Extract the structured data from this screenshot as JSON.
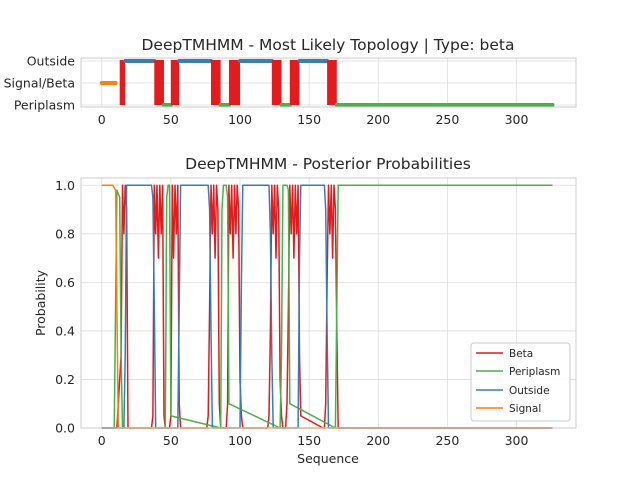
{
  "chart_data": [
    {
      "type": "line",
      "title": "DeepTMHMM - Most Likely Topology | Type: beta",
      "xlabel": "",
      "ylabel": "",
      "xlim": [
        -15,
        343
      ],
      "x_ticks": [
        0,
        50,
        100,
        150,
        200,
        250,
        300
      ],
      "y_categories": [
        "Periplasm",
        "Signal/Beta",
        "Outside"
      ],
      "grid": true,
      "segments": [
        {
          "label": "Signal",
          "color": "#ff7f0e",
          "level": "Signal/Beta",
          "x": [
            0,
            10
          ]
        },
        {
          "label": "Beta",
          "color": "#e41a1c",
          "x": [
            13,
            17
          ]
        },
        {
          "label": "Outside",
          "color": "#377eb8",
          "level": "Outside",
          "x": [
            17,
            38
          ]
        },
        {
          "label": "Beta",
          "color": "#e41a1c",
          "x": [
            38,
            45
          ]
        },
        {
          "label": "Periplasm",
          "color": "#4daf4a",
          "level": "Periplasm",
          "x": [
            45,
            50
          ]
        },
        {
          "label": "Beta",
          "color": "#e41a1c",
          "x": [
            50,
            56
          ]
        },
        {
          "label": "Outside",
          "color": "#377eb8",
          "level": "Outside",
          "x": [
            56,
            79
          ]
        },
        {
          "label": "Beta",
          "color": "#e41a1c",
          "x": [
            79,
            86
          ]
        },
        {
          "label": "Periplasm",
          "color": "#4daf4a",
          "level": "Periplasm",
          "x": [
            86,
            92
          ]
        },
        {
          "label": "Beta",
          "color": "#e41a1c",
          "x": [
            92,
            100
          ]
        },
        {
          "label": "Outside",
          "color": "#377eb8",
          "level": "Outside",
          "x": [
            100,
            123
          ]
        },
        {
          "label": "Beta",
          "color": "#e41a1c",
          "x": [
            123,
            130
          ]
        },
        {
          "label": "Periplasm",
          "color": "#4daf4a",
          "level": "Periplasm",
          "x": [
            130,
            136
          ]
        },
        {
          "label": "Beta",
          "color": "#e41a1c",
          "x": [
            136,
            143
          ]
        },
        {
          "label": "Outside",
          "color": "#377eb8",
          "level": "Outside",
          "x": [
            143,
            163
          ]
        },
        {
          "label": "Beta",
          "color": "#e41a1c",
          "x": [
            163,
            170
          ]
        },
        {
          "label": "Periplasm",
          "color": "#4daf4a",
          "level": "Periplasm",
          "x": [
            170,
            326
          ]
        }
      ]
    },
    {
      "type": "line",
      "title": "DeepTMHMM - Posterior Probabilities",
      "xlabel": "Sequence",
      "ylabel": "Probability",
      "xlim": [
        -15,
        343
      ],
      "ylim": [
        0,
        1.03
      ],
      "x_ticks": [
        0,
        50,
        100,
        150,
        200,
        250,
        300
      ],
      "y_ticks": [
        0.0,
        0.2,
        0.4,
        0.6,
        0.8,
        1.0
      ],
      "y_tick_labels": [
        "0.0",
        "0.2",
        "0.4",
        "0.6",
        "0.8",
        "1.0"
      ],
      "grid": true,
      "legend_position": "lower-right",
      "series": [
        {
          "name": "Beta",
          "color": "#e41a1c",
          "x": [
            0,
            11,
            14,
            15,
            16,
            17,
            18,
            19,
            36,
            37,
            38,
            39,
            40,
            41,
            42,
            43,
            44,
            45,
            46,
            47,
            48,
            49,
            50,
            51,
            52,
            53,
            54,
            55,
            56,
            57,
            76,
            77,
            78,
            79,
            80,
            81,
            82,
            83,
            84,
            85,
            86,
            87,
            88,
            89,
            90,
            91,
            92,
            93,
            94,
            95,
            96,
            97,
            98,
            99,
            100,
            101,
            102,
            120,
            121,
            122,
            123,
            124,
            125,
            126,
            127,
            128,
            129,
            130,
            131,
            133,
            134,
            135,
            136,
            137,
            138,
            139,
            140,
            141,
            142,
            143,
            144,
            160,
            161,
            162,
            163,
            164,
            165,
            166,
            167,
            168,
            169,
            170,
            171,
            326
          ],
          "y": [
            0,
            0,
            0.3,
            1,
            0.8,
            1,
            0.9,
            0,
            0,
            0.05,
            1,
            0.8,
            1,
            0.7,
            1,
            0.8,
            1,
            0.05,
            0,
            0,
            0,
            0,
            0.05,
            1,
            0.7,
            1,
            0.8,
            1,
            0.1,
            0,
            0,
            0.05,
            0.5,
            1,
            0.8,
            1,
            0.7,
            1,
            0.9,
            0.1,
            0,
            0,
            0,
            0,
            0,
            0.1,
            1,
            0.8,
            1,
            0.7,
            1,
            0.8,
            1,
            0.9,
            0.2,
            0.05,
            0,
            0,
            0.05,
            0.4,
            1,
            0.8,
            1,
            0.7,
            1,
            0.9,
            0.2,
            0.05,
            0,
            0,
            0.1,
            0.5,
            1,
            0.8,
            1,
            0.7,
            1,
            0.8,
            1,
            0.3,
            0.05,
            0,
            0,
            0.1,
            0.6,
            1,
            0.8,
            1,
            0.7,
            1,
            0.9,
            0.4,
            0,
            0
          ]
        },
        {
          "name": "Periplasm",
          "color": "#4daf4a",
          "x": [
            0,
            9,
            11,
            13,
            14,
            15,
            46,
            47,
            48,
            49,
            50,
            86,
            87,
            88,
            89,
            90,
            91,
            92,
            129,
            130,
            131,
            133,
            134,
            135,
            136,
            169,
            170,
            171,
            172,
            326
          ],
          "y": [
            0,
            0,
            0.98,
            0.95,
            0.3,
            0,
            0,
            0.95,
            1,
            1,
            0.05,
            0,
            0.9,
            1,
            1,
            1,
            0.95,
            0.1,
            0,
            0.3,
            1,
            1,
            1,
            0.98,
            0.1,
            0,
            0.5,
            1,
            1,
            1
          ]
        },
        {
          "name": "Outside",
          "color": "#377eb8",
          "x": [
            0,
            16,
            17,
            18,
            36,
            37,
            38,
            39,
            55,
            56,
            57,
            77,
            78,
            79,
            80,
            100,
            101,
            102,
            121,
            122,
            123,
            124,
            142,
            143,
            144,
            161,
            162,
            163,
            164,
            326
          ],
          "y": [
            0,
            0,
            0.3,
            1,
            1,
            0.95,
            0.5,
            0,
            0,
            0.5,
            1,
            1,
            0.9,
            0.4,
            0,
            0,
            0.6,
            1,
            1,
            0.8,
            0.3,
            0,
            0,
            0.7,
            1,
            1,
            0.9,
            0.4,
            0,
            0
          ]
        },
        {
          "name": "Signal",
          "color": "#ff7f0e",
          "x": [
            0,
            8,
            10,
            11,
            12,
            326
          ],
          "y": [
            1,
            1,
            0.98,
            0.5,
            0,
            0
          ]
        }
      ]
    }
  ],
  "legend": {
    "beta": "Beta",
    "periplasm": "Periplasm",
    "outside": "Outside",
    "signal": "Signal"
  }
}
